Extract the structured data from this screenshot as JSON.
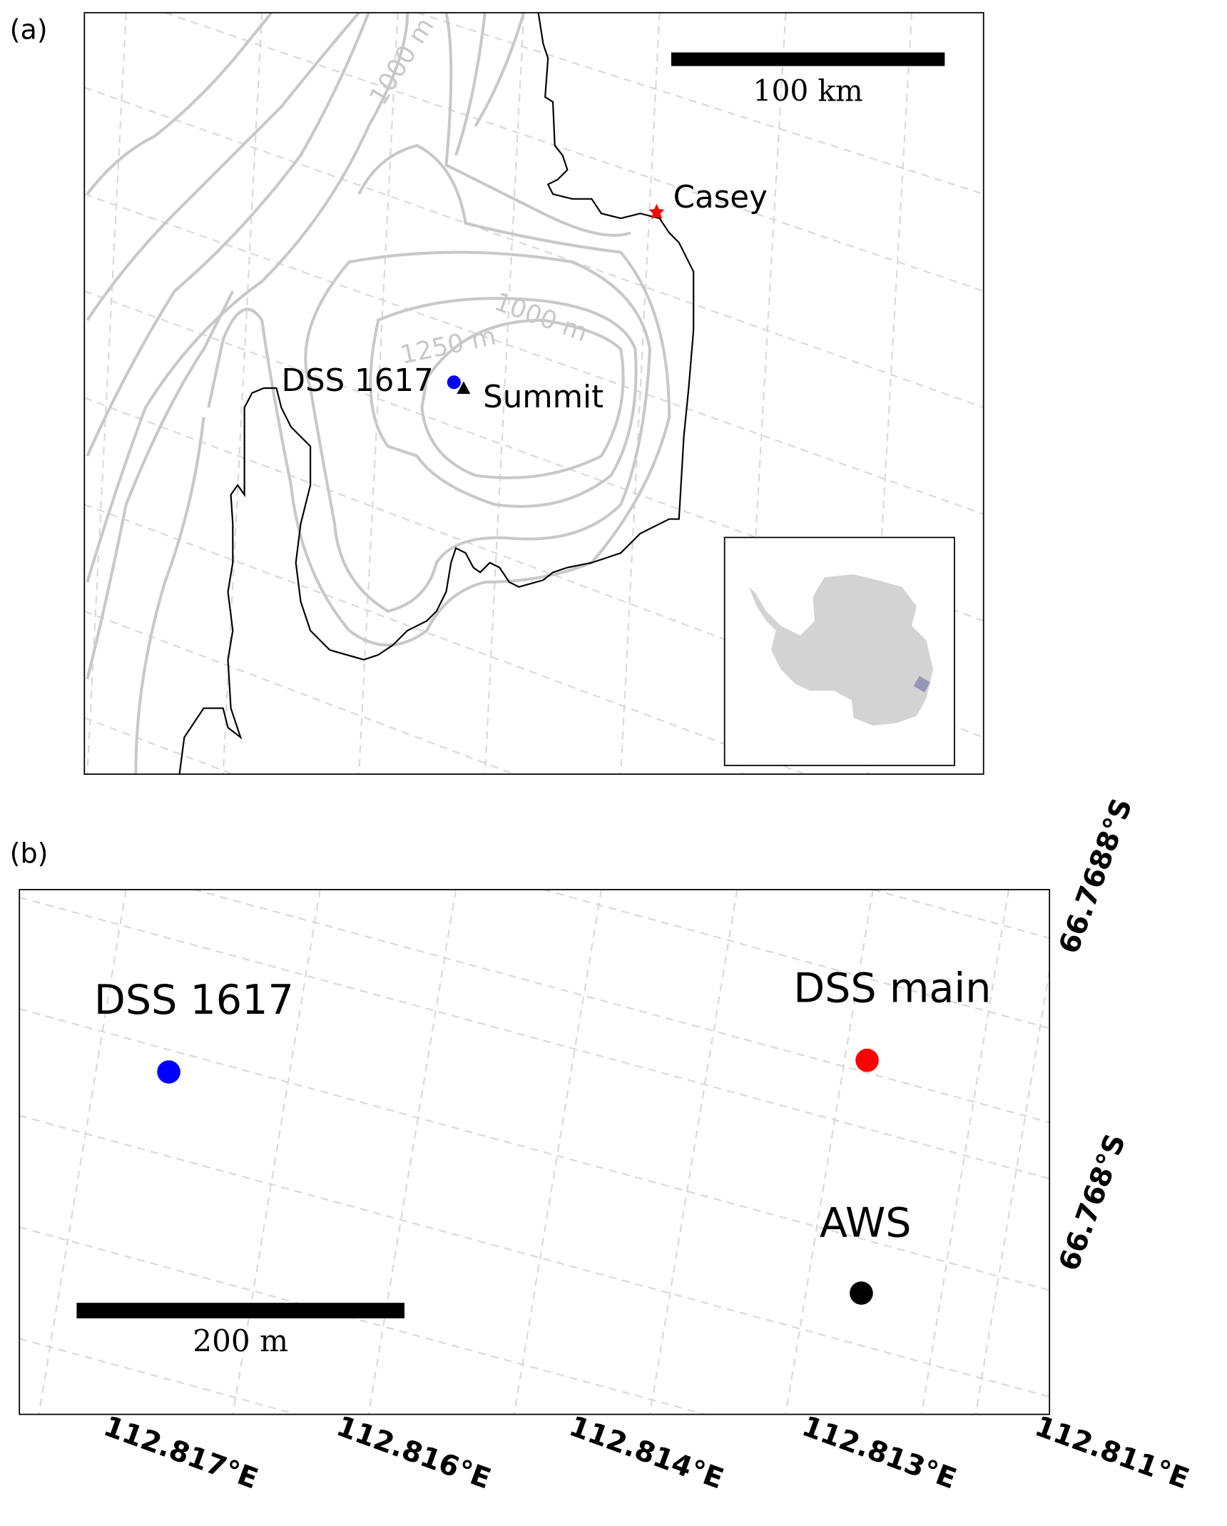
{
  "panel_a": {
    "label": "(a)",
    "scale_bar": "100 km",
    "contour_labels": [
      "1000 m",
      "1000 m",
      "1250 m"
    ],
    "sites": [
      {
        "name": "Casey",
        "marker": "star",
        "color": "#ff0000"
      },
      {
        "name": "DSS 1617",
        "marker": "circle",
        "color": "#0000ff"
      },
      {
        "name": "Summit",
        "marker": "triangle",
        "color": "#000000"
      }
    ],
    "inset": {
      "land_color": "#d3d3d3",
      "highlight_color": "#8080b0"
    }
  },
  "panel_b": {
    "label": "(b)",
    "scale_bar": "200 m",
    "sites": [
      {
        "name": "DSS 1617",
        "color": "#0000ff"
      },
      {
        "name": "DSS main",
        "color": "#ff0000"
      },
      {
        "name": "AWS",
        "color": "#000000"
      }
    ],
    "lat_ticks": [
      "66.7688°S",
      "66.768°S"
    ],
    "lon_ticks": [
      "112.817°E",
      "112.816°E",
      "112.814°E",
      "112.813°E",
      "112.811°E"
    ]
  }
}
